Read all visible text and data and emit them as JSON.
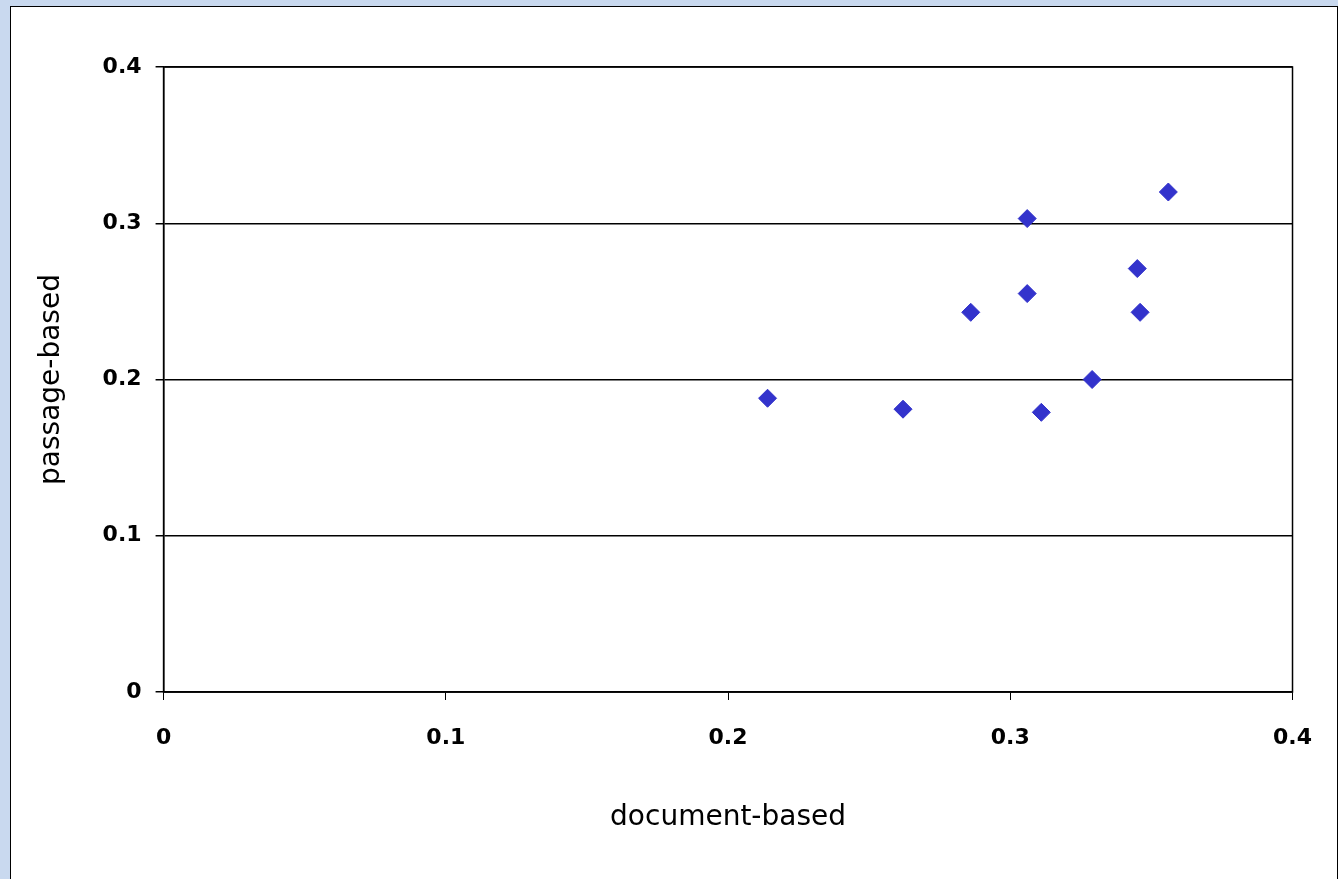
{
  "chart_data": {
    "type": "scatter",
    "xlabel": "document-based",
    "ylabel": "passage-based",
    "series": [
      {
        "color": "#3333cc",
        "x": [
          0.214,
          0.262,
          0.286,
          0.306,
          0.306,
          0.311,
          0.329,
          0.345,
          0.346,
          0.356
        ],
        "values": [
          0.188,
          0.181,
          0.243,
          0.303,
          0.255,
          0.179,
          0.2,
          0.271,
          0.243,
          0.32
        ]
      }
    ],
    "xlim": [
      0,
      0.4
    ],
    "xticks": [
      0,
      0.1,
      0.2,
      0.3,
      0.4
    ],
    "ylim": [
      0,
      0.4
    ],
    "yticks": [
      0,
      0.1,
      0.2,
      0.3,
      0.4
    ],
    "grid": "y",
    "legend": false,
    "marker": "diamond"
  }
}
